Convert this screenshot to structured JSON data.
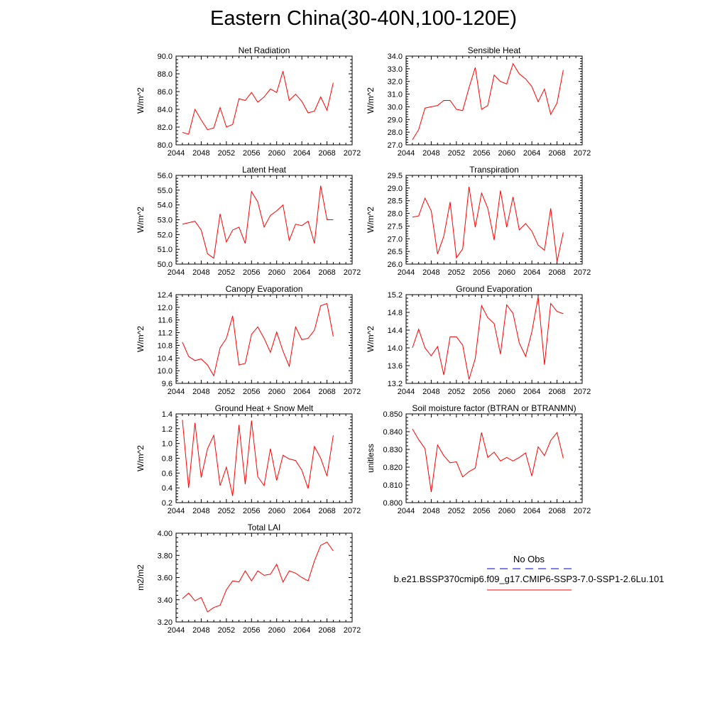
{
  "title": "Eastern China(30-40N,100-120E)",
  "colors": {
    "model": "#ff0000",
    "obs": "#0000cc",
    "axis": "#000000"
  },
  "legend": {
    "obs_label": "No Obs",
    "model_label": "b.e21.BSSP370cmip6.f09_g17.CMIP6-SSP3-7.0-SSP1-2.6Lu.101"
  },
  "chart_data": [
    {
      "type": "line",
      "title": "Net Radiation",
      "ylabel": "W/m^2",
      "xlim": [
        2044,
        2072
      ],
      "ylim": [
        80.0,
        90.0
      ],
      "xticks": [
        "2044",
        "2048",
        "2052",
        "2056",
        "2060",
        "2064",
        "2068",
        "2072"
      ],
      "yticks": [
        "80.0",
        "82.0",
        "84.0",
        "86.0",
        "88.0",
        "90.0"
      ],
      "series": [
        {
          "x": [
            2045,
            2046,
            2047,
            2048,
            2049,
            2050,
            2051,
            2052,
            2053,
            2054,
            2055,
            2056,
            2057,
            2058,
            2059,
            2060,
            2061,
            2062,
            2063,
            2064,
            2065,
            2066,
            2067,
            2068,
            2069
          ],
          "values": [
            81.4,
            81.2,
            84.0,
            82.8,
            81.7,
            81.9,
            84.2,
            82.0,
            82.3,
            85.2,
            85.0,
            85.9,
            84.8,
            85.4,
            86.3,
            85.9,
            88.3,
            85.0,
            85.7,
            84.9,
            83.6,
            83.8,
            85.4,
            83.9,
            87.0
          ]
        }
      ]
    },
    {
      "type": "line",
      "title": "Sensible Heat",
      "ylabel": "W/m^2",
      "xlim": [
        2044,
        2072
      ],
      "ylim": [
        27.0,
        34.0
      ],
      "xticks": [
        "2044",
        "2048",
        "2052",
        "2056",
        "2060",
        "2064",
        "2068",
        "2072"
      ],
      "yticks": [
        "27.0",
        "28.0",
        "29.0",
        "30.0",
        "31.0",
        "32.0",
        "33.0",
        "34.0"
      ],
      "series": [
        {
          "x": [
            2045,
            2046,
            2047,
            2048,
            2049,
            2050,
            2051,
            2052,
            2053,
            2054,
            2055,
            2056,
            2057,
            2058,
            2059,
            2060,
            2061,
            2062,
            2063,
            2064,
            2065,
            2066,
            2067,
            2068,
            2069
          ],
          "values": [
            27.4,
            28.2,
            29.9,
            30.0,
            30.1,
            30.5,
            30.5,
            29.8,
            29.7,
            31.5,
            33.1,
            29.8,
            30.1,
            32.5,
            32.0,
            31.8,
            33.4,
            32.6,
            32.2,
            31.6,
            30.4,
            31.4,
            29.4,
            30.3,
            32.9
          ]
        }
      ]
    },
    {
      "type": "line",
      "title": "Latent Heat",
      "ylabel": "W/m^2",
      "xlim": [
        2044,
        2072
      ],
      "ylim": [
        50.0,
        56.0
      ],
      "xticks": [
        "2044",
        "2048",
        "2052",
        "2056",
        "2060",
        "2064",
        "2068",
        "2072"
      ],
      "yticks": [
        "50.0",
        "51.0",
        "52.0",
        "53.0",
        "54.0",
        "55.0",
        "56.0"
      ],
      "series": [
        {
          "x": [
            2045,
            2046,
            2047,
            2048,
            2049,
            2050,
            2051,
            2052,
            2053,
            2054,
            2055,
            2056,
            2057,
            2058,
            2059,
            2060,
            2061,
            2062,
            2063,
            2064,
            2065,
            2066,
            2067,
            2068,
            2069
          ],
          "values": [
            52.7,
            52.8,
            52.9,
            52.3,
            50.7,
            50.4,
            53.4,
            51.5,
            52.3,
            52.5,
            51.4,
            54.9,
            54.2,
            52.5,
            53.3,
            53.6,
            54.0,
            51.6,
            52.7,
            52.6,
            52.9,
            51.4,
            55.3,
            53.0,
            53.0
          ]
        }
      ]
    },
    {
      "type": "line",
      "title": "Transpiration",
      "ylabel": "W/m^2",
      "xlim": [
        2044,
        2072
      ],
      "ylim": [
        26.0,
        29.5
      ],
      "xticks": [
        "2044",
        "2048",
        "2052",
        "2056",
        "2060",
        "2064",
        "2068",
        "2072"
      ],
      "yticks": [
        "26.0",
        "26.5",
        "27.0",
        "27.5",
        "28.0",
        "28.5",
        "29.0",
        "29.5"
      ],
      "series": [
        {
          "x": [
            2045,
            2046,
            2047,
            2048,
            2049,
            2050,
            2051,
            2052,
            2053,
            2054,
            2055,
            2056,
            2057,
            2058,
            2059,
            2060,
            2061,
            2062,
            2063,
            2064,
            2065,
            2066,
            2067,
            2068,
            2069
          ],
          "values": [
            27.85,
            27.9,
            28.6,
            28.1,
            26.4,
            27.1,
            28.45,
            26.25,
            26.6,
            29.05,
            27.45,
            28.8,
            28.2,
            26.95,
            28.9,
            27.45,
            28.65,
            27.35,
            27.6,
            27.3,
            26.75,
            26.55,
            28.2,
            26.1,
            27.25
          ]
        }
      ]
    },
    {
      "type": "line",
      "title": "Canopy Evaporation",
      "ylabel": "W/m^2",
      "xlim": [
        2044,
        2072
      ],
      "ylim": [
        9.6,
        12.4
      ],
      "xticks": [
        "2044",
        "2048",
        "2052",
        "2056",
        "2060",
        "2064",
        "2068",
        "2072"
      ],
      "yticks": [
        "9.6",
        "10.0",
        "10.4",
        "10.8",
        "11.2",
        "11.6",
        "12.0",
        "12.4"
      ],
      "series": [
        {
          "x": [
            2045,
            2046,
            2047,
            2048,
            2049,
            2050,
            2051,
            2052,
            2053,
            2054,
            2055,
            2056,
            2057,
            2058,
            2059,
            2060,
            2061,
            2062,
            2063,
            2064,
            2065,
            2066,
            2067,
            2068,
            2069
          ],
          "values": [
            10.9,
            10.45,
            10.32,
            10.37,
            10.18,
            9.84,
            10.72,
            11.02,
            11.73,
            10.18,
            10.23,
            11.15,
            11.38,
            11.02,
            10.58,
            11.22,
            10.62,
            10.14,
            11.38,
            10.98,
            11.02,
            11.28,
            12.05,
            12.12,
            11.08
          ]
        }
      ]
    },
    {
      "type": "line",
      "title": "Ground Evaporation",
      "ylabel": "W/m^2",
      "xlim": [
        2044,
        2072
      ],
      "ylim": [
        13.2,
        15.2
      ],
      "xticks": [
        "2044",
        "2048",
        "2052",
        "2056",
        "2060",
        "2064",
        "2068",
        "2072"
      ],
      "yticks": [
        "13.2",
        "13.6",
        "14.0",
        "14.4",
        "14.8",
        "15.2"
      ],
      "series": [
        {
          "x": [
            2045,
            2046,
            2047,
            2048,
            2049,
            2050,
            2051,
            2052,
            2053,
            2054,
            2055,
            2056,
            2057,
            2058,
            2059,
            2060,
            2061,
            2062,
            2063,
            2064,
            2065,
            2066,
            2067,
            2068,
            2069
          ],
          "values": [
            14.0,
            14.42,
            14.0,
            13.82,
            14.03,
            13.39,
            14.25,
            14.25,
            14.06,
            13.29,
            13.76,
            14.95,
            14.68,
            14.55,
            13.86,
            14.97,
            14.78,
            14.11,
            13.81,
            14.36,
            15.15,
            13.62,
            15.0,
            14.82,
            14.77
          ]
        }
      ]
    },
    {
      "type": "line",
      "title": "Ground Heat + Snow Melt",
      "ylabel": "W/m^2",
      "xlim": [
        2044,
        2072
      ],
      "ylim": [
        0.2,
        1.4
      ],
      "xticks": [
        "2044",
        "2048",
        "2052",
        "2056",
        "2060",
        "2064",
        "2068",
        "2072"
      ],
      "yticks": [
        "0.2",
        "0.4",
        "0.6",
        "0.8",
        "1.0",
        "1.2",
        "1.4"
      ],
      "series": [
        {
          "x": [
            2045,
            2046,
            2047,
            2048,
            2049,
            2050,
            2051,
            2052,
            2053,
            2054,
            2055,
            2056,
            2057,
            2058,
            2059,
            2060,
            2061,
            2062,
            2063,
            2064,
            2065,
            2066,
            2067,
            2068,
            2069
          ],
          "values": [
            1.32,
            0.4,
            1.28,
            0.54,
            0.93,
            1.11,
            0.43,
            0.68,
            0.29,
            1.25,
            0.45,
            1.31,
            0.55,
            0.43,
            0.93,
            0.5,
            0.84,
            0.79,
            0.77,
            0.64,
            0.39,
            0.96,
            0.8,
            0.56,
            1.11
          ]
        }
      ]
    },
    {
      "type": "line",
      "title": "Soil moisture factor (BTRAN or BTRANMN)",
      "ylabel": "unitless",
      "xlim": [
        2044,
        2072
      ],
      "ylim": [
        0.8,
        0.85
      ],
      "xticks": [
        "2044",
        "2048",
        "2052",
        "2056",
        "2060",
        "2064",
        "2068",
        "2072"
      ],
      "yticks": [
        "0.800",
        "0.810",
        "0.820",
        "0.830",
        "0.840",
        "0.850"
      ],
      "series": [
        {
          "x": [
            2045,
            2046,
            2047,
            2048,
            2049,
            2050,
            2051,
            2052,
            2053,
            2054,
            2055,
            2056,
            2057,
            2058,
            2059,
            2060,
            2061,
            2062,
            2063,
            2064,
            2065,
            2066,
            2067,
            2068,
            2069
          ],
          "values": [
            0.8415,
            0.8355,
            0.8305,
            0.806,
            0.8325,
            0.8265,
            0.8225,
            0.823,
            0.8145,
            0.8175,
            0.8195,
            0.8395,
            0.8255,
            0.8285,
            0.8235,
            0.8255,
            0.8235,
            0.8255,
            0.828,
            0.815,
            0.8315,
            0.8265,
            0.835,
            0.8395,
            0.825
          ]
        }
      ]
    },
    {
      "type": "line",
      "title": "Total LAI",
      "ylabel": "m2/m2",
      "xlim": [
        2044,
        2072
      ],
      "ylim": [
        3.2,
        4.0
      ],
      "xticks": [
        "2044",
        "2048",
        "2052",
        "2056",
        "2060",
        "2064",
        "2068",
        "2072"
      ],
      "yticks": [
        "3.20",
        "3.40",
        "3.60",
        "3.80",
        "4.00"
      ],
      "series": [
        {
          "x": [
            2045,
            2046,
            2047,
            2048,
            2049,
            2050,
            2051,
            2052,
            2053,
            2054,
            2055,
            2056,
            2057,
            2058,
            2059,
            2060,
            2061,
            2062,
            2063,
            2064,
            2065,
            2066,
            2067,
            2068,
            2069
          ],
          "values": [
            3.41,
            3.46,
            3.39,
            3.42,
            3.29,
            3.33,
            3.35,
            3.49,
            3.57,
            3.56,
            3.66,
            3.57,
            3.66,
            3.62,
            3.63,
            3.72,
            3.56,
            3.66,
            3.64,
            3.6,
            3.57,
            3.75,
            3.89,
            3.92,
            3.84
          ]
        }
      ]
    }
  ]
}
